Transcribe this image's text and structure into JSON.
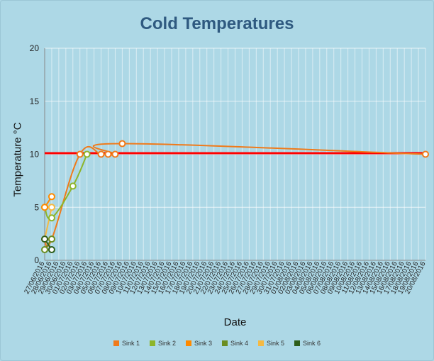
{
  "chart_data": {
    "type": "line",
    "title": "Cold Temperatures",
    "xlabel": "Date",
    "ylabel": "Temperature °C",
    "ylim": [
      0,
      20
    ],
    "yticks": [
      0,
      5,
      10,
      15,
      20
    ],
    "threshold": {
      "value": 10.1,
      "color": "#ff0000"
    },
    "categories": [
      "27/06/2016",
      "28/06/2016",
      "29/06/2016",
      "30/06/2016",
      "01/07/2016",
      "02/07/2016",
      "03/07/2016",
      "04/07/2016",
      "05/07/2016",
      "06/07/2016",
      "07/07/2016",
      "08/07/2016",
      "09/07/2016",
      "10/07/2016",
      "11/07/2016",
      "12/07/2016",
      "13/07/2016",
      "14/07/2016",
      "15/07/2016",
      "16/07/2016",
      "17/07/2016",
      "18/07/2016",
      "19/07/2016",
      "20/07/2016",
      "21/07/2016",
      "22/07/2016",
      "23/07/2016",
      "24/07/2016",
      "25/07/2016",
      "26/07/2016",
      "27/07/2016",
      "28/07/2016",
      "29/07/2016",
      "30/07/2016",
      "31/07/2016",
      "01/08/2016",
      "02/08/2016",
      "03/08/2016",
      "04/08/2016",
      "05/08/2016",
      "06/08/2016",
      "07/08/2016",
      "08/08/2016",
      "09/08/2016",
      "10/08/2016",
      "11/08/2016",
      "12/08/2016",
      "13/08/2016",
      "14/08/2016",
      "15/08/2016",
      "16/08/2016",
      "17/08/2016",
      "18/08/2016",
      "19/08/2016",
      "20/08/2016"
    ],
    "series": [
      {
        "name": "Sink 1",
        "color": "#f07a1a",
        "points": [
          [
            0,
            2
          ],
          [
            1,
            2
          ],
          [
            5,
            10
          ],
          [
            8,
            10
          ],
          [
            9,
            10
          ],
          [
            10,
            10
          ],
          [
            11,
            11
          ],
          [
            54,
            10
          ]
        ]
      },
      {
        "name": "Sink 2",
        "color": "#8db52a",
        "points": [
          [
            0,
            5
          ],
          [
            1,
            4
          ],
          [
            4,
            7
          ],
          [
            6,
            10
          ]
        ]
      },
      {
        "name": "Sink 3",
        "color": "#ff8a00",
        "points": [
          [
            0,
            5
          ],
          [
            1,
            6
          ]
        ]
      },
      {
        "name": "Sink 4",
        "color": "#6b8e23",
        "points": [
          [
            0,
            1
          ],
          [
            1,
            2
          ]
        ]
      },
      {
        "name": "Sink 5",
        "color": "#f5b942",
        "points": [
          [
            0,
            2
          ],
          [
            1,
            5
          ]
        ]
      },
      {
        "name": "Sink 6",
        "color": "#2e5e1a",
        "points": [
          [
            0,
            2
          ],
          [
            1,
            1
          ]
        ]
      }
    ],
    "legend": "bottom",
    "grid": true
  }
}
